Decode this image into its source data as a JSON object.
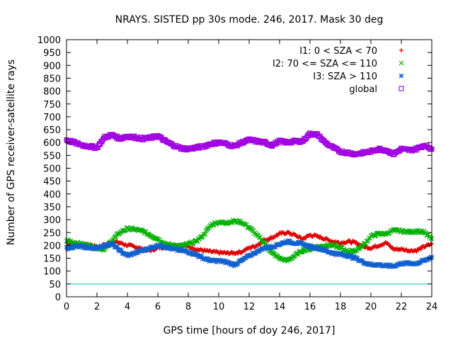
{
  "chart_data": {
    "type": "scatter",
    "title": "NRAYS. SISTED pp 30s mode. 246, 2017. Mask 30 deg",
    "xlabel": "GPS time [hours of doy 246, 2017]",
    "ylabel": "Number of GPS receiver-satellite rays",
    "xlim": [
      0,
      24
    ],
    "ylim": [
      0,
      1000
    ],
    "xticks": [
      0,
      2,
      4,
      6,
      8,
      10,
      12,
      14,
      16,
      18,
      20,
      22,
      24
    ],
    "yticks": [
      0,
      50,
      100,
      150,
      200,
      250,
      300,
      350,
      400,
      450,
      500,
      550,
      600,
      650,
      700,
      750,
      800,
      850,
      900,
      950,
      1000
    ],
    "reference_line": {
      "y": 50,
      "color": "#00c0c0"
    },
    "legend_position": "top-right",
    "series": [
      {
        "name": "I1: 0 < SZA < 70",
        "marker": "+",
        "color": "#e00000",
        "x": [
          0,
          0.5,
          1,
          1.5,
          2,
          2.5,
          3,
          3.5,
          4,
          4.5,
          5,
          5.5,
          6,
          6.5,
          7,
          7.5,
          8,
          8.5,
          9,
          9.5,
          10,
          10.5,
          11,
          11.5,
          12,
          12.5,
          13,
          13.5,
          14,
          14.5,
          15,
          15.5,
          16,
          16.5,
          17,
          17.5,
          18,
          18.5,
          19,
          19.5,
          20,
          20.5,
          21,
          21.5,
          22,
          22.5,
          23,
          23.5,
          24
        ],
        "values": [
          210,
          205,
          200,
          200,
          195,
          200,
          215,
          210,
          200,
          195,
          185,
          180,
          190,
          195,
          200,
          200,
          195,
          185,
          180,
          175,
          172,
          170,
          170,
          175,
          190,
          200,
          220,
          230,
          245,
          250,
          240,
          225,
          240,
          235,
          225,
          215,
          210,
          215,
          210,
          195,
          190,
          200,
          210,
          185,
          185,
          180,
          180,
          195,
          205
        ]
      },
      {
        "name": "I2: 70 <= SZA <= 110",
        "marker": "x",
        "color": "#00b000",
        "x": [
          0,
          0.5,
          1,
          1.5,
          2,
          2.5,
          3,
          3.5,
          4,
          4.5,
          5,
          5.5,
          6,
          6.5,
          7,
          7.5,
          8,
          8.5,
          9,
          9.5,
          10,
          10.5,
          11,
          11.5,
          12,
          12.5,
          13,
          13.5,
          14,
          14.5,
          15,
          15.5,
          16,
          16.5,
          17,
          17.5,
          18,
          18.5,
          19,
          19.5,
          20,
          20.5,
          21,
          21.5,
          22,
          22.5,
          23,
          23.5,
          24
        ],
        "values": [
          220,
          210,
          205,
          200,
          190,
          185,
          220,
          250,
          265,
          262,
          255,
          240,
          225,
          205,
          200,
          198,
          205,
          215,
          240,
          280,
          290,
          288,
          295,
          290,
          270,
          240,
          210,
          170,
          150,
          140,
          160,
          180,
          185,
          195,
          200,
          200,
          190,
          175,
          180,
          200,
          235,
          245,
          245,
          258,
          256,
          252,
          256,
          250,
          225
        ]
      },
      {
        "name": "I3: SZA > 110",
        "marker": "*",
        "color": "#1060d0",
        "x": [
          0,
          0.5,
          1,
          1.5,
          2,
          2.5,
          3,
          3.5,
          4,
          4.5,
          5,
          5.5,
          6,
          6.5,
          7,
          7.5,
          8,
          8.5,
          9,
          9.5,
          10,
          10.5,
          11,
          11.5,
          12,
          12.5,
          13,
          13.5,
          14,
          14.5,
          15,
          15.5,
          16,
          16.5,
          17,
          17.5,
          18,
          18.5,
          19,
          19.5,
          20,
          20.5,
          21,
          21.5,
          22,
          22.5,
          23,
          23.5,
          24
        ],
        "values": [
          190,
          195,
          195,
          190,
          190,
          200,
          205,
          180,
          160,
          170,
          180,
          190,
          200,
          195,
          185,
          180,
          175,
          165,
          150,
          140,
          140,
          135,
          125,
          140,
          160,
          175,
          190,
          195,
          205,
          215,
          210,
          205,
          195,
          190,
          180,
          170,
          165,
          160,
          150,
          135,
          125,
          125,
          120,
          120,
          130,
          130,
          130,
          140,
          155
        ]
      },
      {
        "name": "global",
        "marker": "square",
        "color": "#a000e0",
        "x": [
          0,
          0.5,
          1,
          1.5,
          2,
          2.5,
          3,
          3.5,
          4,
          4.5,
          5,
          5.5,
          6,
          6.5,
          7,
          7.5,
          8,
          8.5,
          9,
          9.5,
          10,
          10.5,
          11,
          11.5,
          12,
          12.5,
          13,
          13.5,
          14,
          14.5,
          15,
          15.5,
          16,
          16.5,
          17,
          17.5,
          18,
          18.5,
          19,
          19.5,
          20,
          20.5,
          21,
          21.5,
          22,
          22.5,
          23,
          23.5,
          24
        ],
        "values": [
          610,
          600,
          590,
          585,
          580,
          620,
          630,
          615,
          625,
          620,
          615,
          618,
          625,
          605,
          590,
          578,
          575,
          580,
          585,
          595,
          600,
          595,
          585,
          600,
          610,
          605,
          600,
          590,
          605,
          600,
          605,
          605,
          635,
          630,
          600,
          580,
          565,
          560,
          555,
          560,
          565,
          575,
          570,
          555,
          575,
          570,
          575,
          590,
          575
        ]
      }
    ]
  }
}
